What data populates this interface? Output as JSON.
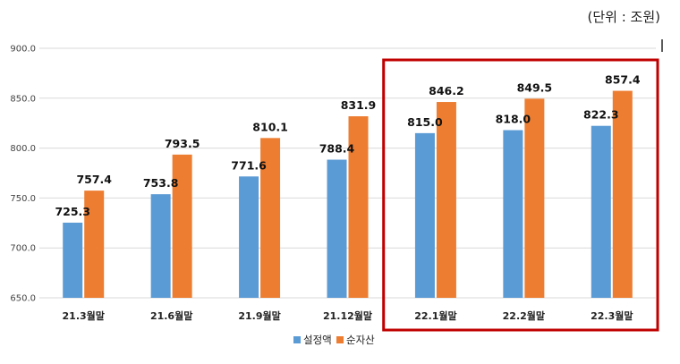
{
  "unit_label": "(단위 : 조원)",
  "colors": {
    "series_1": "#5B9BD5",
    "series_2": "#ED7D31",
    "highlight_box": "#C00000",
    "grid": "#D9D9D9"
  },
  "chart_data": {
    "type": "bar",
    "categories": [
      "21.3월말",
      "21.6월말",
      "21.9월말",
      "21.12월말",
      "22.1월말",
      "22.2월말",
      "22.3월말"
    ],
    "series": [
      {
        "name": "설정액",
        "values": [
          725.3,
          753.8,
          771.6,
          788.4,
          815.0,
          818.0,
          822.3
        ]
      },
      {
        "name": "순자산",
        "values": [
          757.4,
          793.5,
          810.1,
          831.9,
          846.2,
          849.5,
          857.4
        ]
      }
    ],
    "ylim": [
      650,
      900
    ],
    "yticks": [
      "650.0",
      "700.0",
      "750.0",
      "800.0",
      "850.0",
      "900.0"
    ],
    "grid": true,
    "legend_position": "bottom",
    "highlighted_categories": [
      "22.1월말",
      "22.2월말",
      "22.3월말"
    ]
  }
}
